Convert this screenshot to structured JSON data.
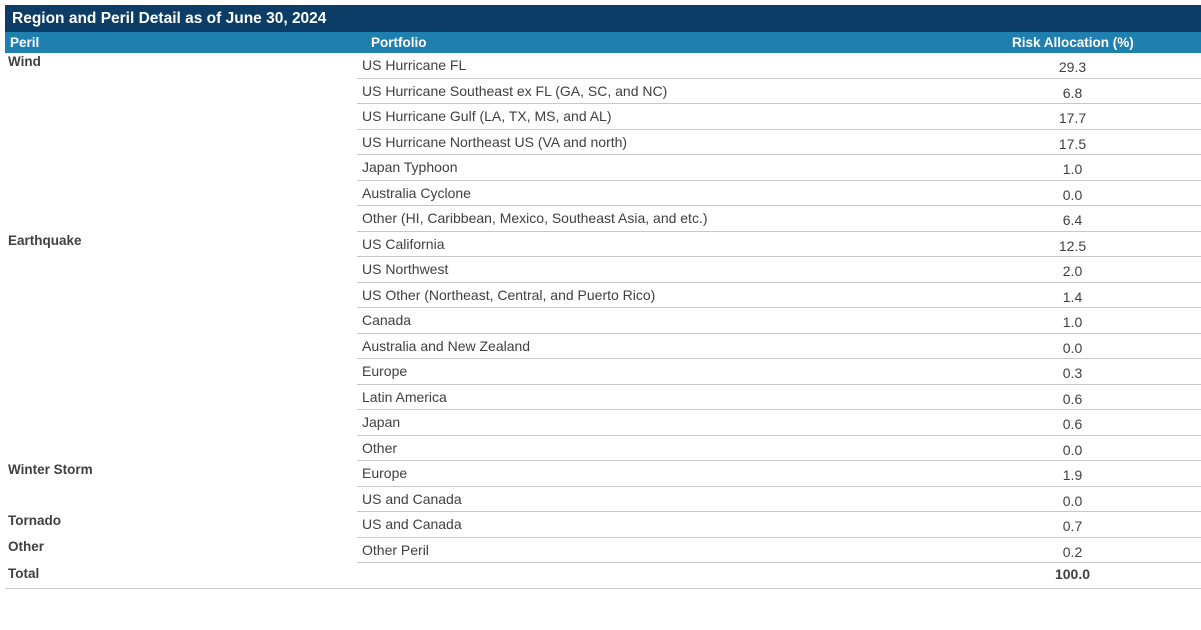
{
  "title": "Region and Peril Detail as of June 30, 2024",
  "headers": {
    "peril": "Peril",
    "portfolio": "Portfolio",
    "allocation": "Risk Allocation (%)"
  },
  "rows": [
    {
      "peril": "Wind",
      "portfolio": "US Hurricane FL",
      "allocation": "29.3"
    },
    {
      "peril": "",
      "portfolio": "US Hurricane Southeast ex FL (GA, SC, and NC)",
      "allocation": "6.8"
    },
    {
      "peril": "",
      "portfolio": "US Hurricane Gulf (LA, TX, MS, and AL)",
      "allocation": "17.7"
    },
    {
      "peril": "",
      "portfolio": "US Hurricane Northeast US (VA and north)",
      "allocation": "17.5"
    },
    {
      "peril": "",
      "portfolio": "Japan Typhoon",
      "allocation": "1.0"
    },
    {
      "peril": "",
      "portfolio": "Australia Cyclone",
      "allocation": "0.0"
    },
    {
      "peril": "",
      "portfolio": "Other (HI, Caribbean, Mexico, Southeast Asia, and etc.)",
      "allocation": "6.4"
    },
    {
      "peril": "Earthquake",
      "portfolio": "US California",
      "allocation": "12.5"
    },
    {
      "peril": "",
      "portfolio": "US Northwest",
      "allocation": "2.0"
    },
    {
      "peril": "",
      "portfolio": "US Other (Northeast, Central, and Puerto Rico)",
      "allocation": "1.4"
    },
    {
      "peril": "",
      "portfolio": "Canada",
      "allocation": "1.0"
    },
    {
      "peril": "",
      "portfolio": "Australia and New Zealand",
      "allocation": "0.0"
    },
    {
      "peril": "",
      "portfolio": "Europe",
      "allocation": "0.3"
    },
    {
      "peril": "",
      "portfolio": "Latin America",
      "allocation": "0.6"
    },
    {
      "peril": "",
      "portfolio": "Japan",
      "allocation": "0.6"
    },
    {
      "peril": "",
      "portfolio": "Other",
      "allocation": "0.0"
    },
    {
      "peril": "Winter Storm",
      "portfolio": "Europe",
      "allocation": "1.9"
    },
    {
      "peril": "",
      "portfolio": "US and Canada",
      "allocation": "0.0"
    },
    {
      "peril": "Tornado",
      "portfolio": "US and Canada",
      "allocation": "0.7"
    },
    {
      "peril": "Other",
      "portfolio": "Other Peril",
      "allocation": "0.2"
    }
  ],
  "total": {
    "label": "Total",
    "allocation": "100.0"
  }
}
